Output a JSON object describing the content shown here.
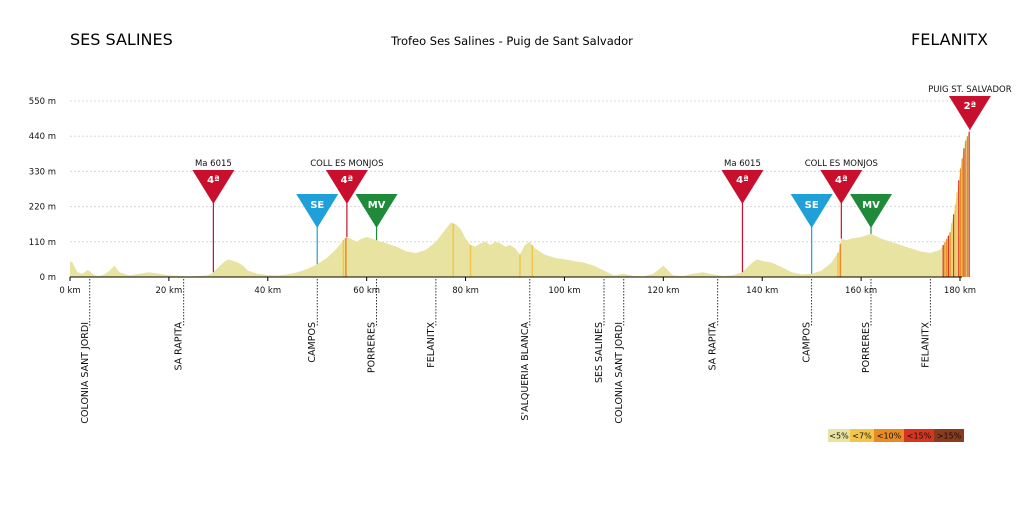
{
  "header": {
    "start": "SES SALINES",
    "title": "Trofeo Ses Salines - Puig de Sant Salvador",
    "finish": "FELANITX"
  },
  "chart_data": {
    "type": "area",
    "title": "Trofeo Ses Salines - Puig de Sant Salvador",
    "xlabel": "",
    "ylabel": "",
    "xlim": [
      0,
      184
    ],
    "ylim": [
      0,
      550
    ],
    "x_ticks": [
      {
        "value": 0,
        "label": "0 km"
      },
      {
        "value": 20,
        "label": "20 km"
      },
      {
        "value": 40,
        "label": "40 km"
      },
      {
        "value": 60,
        "label": "60 km"
      },
      {
        "value": 80,
        "label": "80 km"
      },
      {
        "value": 100,
        "label": "100 km"
      },
      {
        "value": 120,
        "label": "120 km"
      },
      {
        "value": 140,
        "label": "140 km"
      },
      {
        "value": 160,
        "label": "160 km"
      },
      {
        "value": 180,
        "label": "180 km"
      }
    ],
    "y_ticks": [
      {
        "value": 0,
        "label": "0 m"
      },
      {
        "value": 110,
        "label": "110 m"
      },
      {
        "value": 220,
        "label": "220 m"
      },
      {
        "value": 330,
        "label": "330 m"
      },
      {
        "value": 440,
        "label": "440 m"
      },
      {
        "value": 550,
        "label": "550 m"
      }
    ],
    "grid": true,
    "profile": {
      "km": [
        0,
        0.5,
        1.5,
        2.5,
        3.5,
        4,
        5,
        6,
        7,
        8,
        9,
        10,
        12,
        14,
        16,
        18,
        20,
        22,
        24,
        26,
        28,
        29,
        30,
        31,
        32,
        33,
        34,
        35,
        36,
        38,
        40,
        42,
        44,
        46,
        48,
        50,
        52,
        54,
        55.5,
        56,
        57,
        58,
        59,
        60,
        62,
        64,
        66,
        68,
        70,
        72,
        74,
        75,
        76,
        77,
        78,
        79,
        80,
        81,
        82,
        83,
        84,
        85,
        86,
        87,
        88,
        89,
        90,
        91,
        92,
        93,
        94,
        95,
        96,
        98,
        100,
        102,
        104,
        106,
        108,
        110,
        112,
        114,
        116,
        118,
        120,
        122,
        124,
        126,
        128,
        130,
        132,
        134,
        136,
        137,
        138,
        139,
        140,
        142,
        144,
        146,
        148,
        150,
        152,
        154,
        155.5,
        156,
        157,
        158,
        160,
        161,
        162,
        164,
        166,
        168,
        170,
        172,
        174,
        176,
        177,
        178,
        179,
        180,
        181,
        182
      ],
      "elevation": [
        50,
        45,
        15,
        10,
        22,
        18,
        5,
        3,
        8,
        20,
        35,
        15,
        5,
        10,
        15,
        10,
        5,
        3,
        2,
        3,
        6,
        15,
        30,
        45,
        55,
        50,
        45,
        35,
        20,
        10,
        6,
        5,
        8,
        15,
        25,
        40,
        60,
        90,
        120,
        125,
        118,
        110,
        120,
        125,
        115,
        105,
        95,
        80,
        75,
        85,
        110,
        130,
        150,
        170,
        165,
        150,
        120,
        100,
        95,
        105,
        110,
        100,
        110,
        105,
        95,
        100,
        90,
        70,
        100,
        110,
        90,
        80,
        70,
        60,
        55,
        50,
        45,
        35,
        20,
        5,
        10,
        3,
        2,
        10,
        35,
        5,
        3,
        10,
        15,
        8,
        3,
        5,
        15,
        30,
        45,
        55,
        50,
        45,
        30,
        15,
        8,
        10,
        20,
        45,
        80,
        120,
        115,
        120,
        125,
        130,
        135,
        120,
        110,
        100,
        90,
        80,
        75,
        85,
        110,
        140,
        220,
        330,
        420,
        460
      ]
    },
    "climbs": [
      {
        "km": 29,
        "category": "4ª",
        "name": "Ma 6015",
        "color": "#c8102e"
      },
      {
        "km": 56,
        "category": "4ª",
        "name": "COLL ES MONJOS",
        "color": "#c8102e"
      },
      {
        "km": 136,
        "category": "4ª",
        "name": "Ma 6015",
        "color": "#c8102e"
      },
      {
        "km": 156,
        "category": "4ª",
        "name": "COLL ES MONJOS",
        "color": "#c8102e"
      },
      {
        "km": 182,
        "category": "2ª",
        "name": "PUIG ST. SALVADOR",
        "color": "#c8102e"
      }
    ],
    "sprints": [
      {
        "km": 50,
        "label": "SE",
        "color": "#1fa0d8"
      },
      {
        "km": 62,
        "label": "MV",
        "color": "#1e8a3a"
      },
      {
        "km": 150,
        "label": "SE",
        "color": "#1fa0d8"
      },
      {
        "km": 162,
        "label": "MV",
        "color": "#1e8a3a"
      }
    ],
    "places": [
      {
        "km": 4,
        "name": "COLONIA SANT JORDI"
      },
      {
        "km": 23,
        "name": "SA RAPITA"
      },
      {
        "km": 50,
        "name": "CAMPOS"
      },
      {
        "km": 62,
        "name": "PORRERES"
      },
      {
        "km": 74,
        "name": "FELANITX"
      },
      {
        "km": 93,
        "name": "S'ALQUERIA BLANCA"
      },
      {
        "km": 108,
        "name": "SES SALINES"
      },
      {
        "km": 112,
        "name": "COLONIA SANT JORDI"
      },
      {
        "km": 131,
        "name": "SA RAPITA"
      },
      {
        "km": 150,
        "name": "CAMPOS"
      },
      {
        "km": 162,
        "name": "PORRERES"
      },
      {
        "km": 174,
        "name": "FELANITX"
      }
    ],
    "legend": [
      {
        "label": "<5%",
        "color": "#e8e3a0"
      },
      {
        "label": "<7%",
        "color": "#f2c64a"
      },
      {
        "label": "<10%",
        "color": "#e98a24"
      },
      {
        "label": "<15%",
        "color": "#d8341e"
      },
      {
        "label": ">15%",
        "color": "#8a3a1e"
      }
    ],
    "legend_position": "bottom-right"
  }
}
